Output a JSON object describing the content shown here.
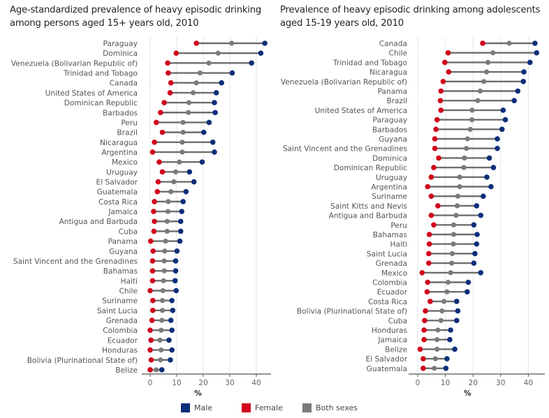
{
  "colors": {
    "male": "#0b2f7a",
    "female": "#d0021b",
    "both": "#7a7a7a",
    "line": "#6e6e6e",
    "grid": "#e6e6e6",
    "zero": "#b5b5b5",
    "axis": "#555555"
  },
  "legend": [
    {
      "key": "male",
      "label": "Male"
    },
    {
      "key": "female",
      "label": "Female"
    },
    {
      "key": "both",
      "label": "Both sexes"
    }
  ],
  "chart_data": [
    {
      "type": "dumbbell",
      "title": "Age-standardized prevalence of heavy episodic drinking among persons aged 15+ years old, 2010",
      "xlabel": "%",
      "ylabel": "",
      "xlim": [
        0,
        45
      ],
      "xticks": [
        0,
        10,
        20,
        30,
        40
      ],
      "grid": true,
      "legend_position": "bottom",
      "categories": [
        "Paraguay",
        "Dominica",
        "Venezuela (Bolivarian Republic of)",
        "Trinidad and Tobago",
        "Canada",
        "United States of America",
        "Dominican Republic",
        "Barbados",
        "Peru",
        "Brazil",
        "Nicaragua",
        "Argentina",
        "Mexico",
        "Uruguay",
        "El Salvador",
        "Guatemala",
        "Costa Rica",
        "Jamaica",
        "Antigua and Barbuda",
        "Cuba",
        "Panama",
        "Guyana",
        "Saint Vincent and the Grenadines",
        "Bahamas",
        "Haiti",
        "Chile",
        "Suriname",
        "Saint Lucia",
        "Grenada",
        "Colombia",
        "Ecuador",
        "Honduras",
        "Bolivia (Plurinational State of)",
        "Belize"
      ],
      "series": [
        {
          "name": "Female",
          "key": "female",
          "values": [
            17.4,
            9.8,
            6.6,
            6.8,
            7.8,
            7.5,
            5.3,
            3.9,
            2.3,
            4.6,
            1.6,
            0.9,
            3.4,
            4.6,
            3.0,
            2.7,
            1.6,
            1.3,
            1.6,
            1.4,
            0.2,
            1.1,
            0.9,
            0.9,
            0.9,
            0.0,
            1.0,
            1.0,
            0.7,
            0.0,
            0.3,
            0.0,
            0.4,
            0.0
          ]
        },
        {
          "name": "Both sexes",
          "key": "both",
          "values": [
            30.7,
            25.6,
            22.1,
            18.8,
            17.4,
            16.2,
            14.6,
            14.4,
            12.4,
            12.4,
            12.1,
            12.1,
            11.0,
            9.6,
            8.9,
            7.8,
            6.8,
            6.7,
            6.4,
            6.4,
            5.8,
            5.5,
            5.3,
            5.3,
            5.0,
            4.8,
            4.6,
            4.6,
            4.4,
            4.1,
            3.7,
            4.1,
            3.9,
            2.3
          ]
        },
        {
          "name": "Male",
          "key": "male",
          "values": [
            43.2,
            41.7,
            38.2,
            30.9,
            26.9,
            24.9,
            24.2,
            24.5,
            22.2,
            20.2,
            23.6,
            24.2,
            19.6,
            14.8,
            16.5,
            13.5,
            12.4,
            11.9,
            11.5,
            11.5,
            11.2,
            10.1,
            9.6,
            9.6,
            9.4,
            9.8,
            8.2,
            8.5,
            7.8,
            8.2,
            7.1,
            8.2,
            7.6,
            4.4
          ]
        }
      ]
    },
    {
      "type": "dumbbell",
      "title": "Prevalence of heavy episodic drinking among adolescents aged 15-19 years old, 2010",
      "xlabel": "%",
      "ylabel": "",
      "xlim": [
        0,
        45
      ],
      "xticks": [
        0,
        10,
        20,
        30,
        40
      ],
      "grid": true,
      "legend_position": "bottom",
      "categories": [
        "Canada",
        "Chile",
        "Trinidad and Tobago",
        "Nicaragua",
        "Venezuela (Bolivarian Republic of)",
        "Panama",
        "Brazil",
        "United States of America",
        "Paraguay",
        "Barbados",
        "Guyana",
        "Saint Vincent and the Grenadines",
        "Dominica",
        "Dominican Republic",
        "Uruguay",
        "Argentina",
        "Suriname",
        "Saint Kitts and Nevis",
        "Antigua and Barbuda",
        "Peru",
        "Bahamas",
        "Haiti",
        "Saint Lucia",
        "Grenada",
        "Mexico",
        "Colombia",
        "Ecuador",
        "Costa Rica",
        "Bolivia (Plurinational State of)",
        "Cuba",
        "Honduras",
        "Jamaica",
        "Belize",
        "El Salvador",
        "Guatemala"
      ],
      "series": [
        {
          "name": "Female",
          "key": "female",
          "values": [
            23.5,
            11.0,
            9.8,
            11.2,
            9.2,
            8.4,
            8.2,
            8.4,
            7.0,
            6.6,
            6.2,
            6.2,
            7.6,
            5.8,
            4.9,
            3.6,
            4.9,
            7.3,
            4.9,
            5.8,
            4.2,
            4.2,
            4.0,
            4.0,
            1.6,
            3.6,
            3.4,
            4.5,
            2.8,
            2.5,
            2.3,
            2.3,
            0.9,
            2.0,
            2.0
          ]
        },
        {
          "name": "Both sexes",
          "key": "both",
          "values": [
            33.1,
            27.2,
            25.4,
            24.9,
            23.9,
            22.6,
            21.7,
            19.7,
            19.6,
            19.0,
            18.0,
            17.6,
            16.9,
            16.7,
            15.2,
            15.2,
            14.5,
            14.3,
            13.9,
            13.0,
            13.0,
            12.9,
            12.5,
            12.3,
            11.9,
            11.0,
            10.6,
            9.5,
            8.8,
            8.4,
            7.3,
            7.0,
            7.0,
            6.4,
            6.0
          ]
        },
        {
          "name": "Male",
          "key": "male",
          "values": [
            42.4,
            43.0,
            40.6,
            38.4,
            38.2,
            36.2,
            34.9,
            30.9,
            31.7,
            30.5,
            28.8,
            28.8,
            25.9,
            27.4,
            25.0,
            26.5,
            23.7,
            21.3,
            22.8,
            20.3,
            21.5,
            21.3,
            20.7,
            20.3,
            22.8,
            18.3,
            17.9,
            14.1,
            14.5,
            14.1,
            11.9,
            11.6,
            13.4,
            10.6,
            10.2
          ]
        }
      ]
    }
  ]
}
